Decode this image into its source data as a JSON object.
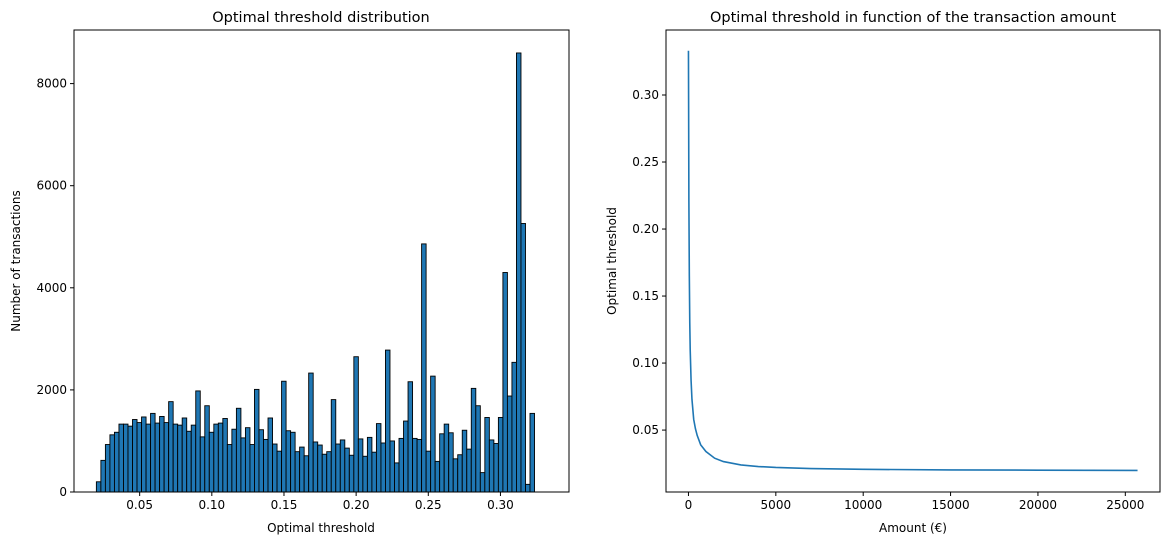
{
  "chart_data": [
    {
      "type": "bar",
      "title": "Optimal threshold distribution",
      "xlabel": "Optimal threshold",
      "ylabel": "Number of transactions",
      "xlim": [
        0.0045,
        0.3475
      ],
      "ylim": [
        0,
        9050
      ],
      "xticks": [
        0.05,
        0.1,
        0.15,
        0.2,
        0.25,
        0.3
      ],
      "xtick_labels": [
        "0.05",
        "0.10",
        "0.15",
        "0.20",
        "0.25",
        "0.30"
      ],
      "yticks": [
        0,
        2000,
        4000,
        6000,
        8000
      ],
      "ytick_labels": [
        "0",
        "2000",
        "4000",
        "6000",
        "8000"
      ],
      "bin_start": 0.02,
      "bin_width": 0.00313,
      "bar_color": "#1f77b4",
      "edge_color": "#000000",
      "values": [
        200,
        620,
        930,
        1120,
        1170,
        1330,
        1330,
        1290,
        1420,
        1360,
        1470,
        1330,
        1540,
        1350,
        1480,
        1360,
        1770,
        1330,
        1310,
        1450,
        1190,
        1310,
        1980,
        1080,
        1690,
        1170,
        1330,
        1350,
        1440,
        930,
        1230,
        1640,
        1060,
        1260,
        930,
        2010,
        1220,
        1030,
        1450,
        940,
        800,
        2170,
        1200,
        1170,
        790,
        880,
        710,
        2330,
        980,
        920,
        740,
        790,
        1810,
        940,
        1020,
        860,
        720,
        2650,
        1040,
        700,
        1070,
        780,
        1340,
        960,
        2780,
        1000,
        570,
        1050,
        1390,
        2160,
        1050,
        1030,
        4860,
        800,
        2270,
        600,
        1140,
        1330,
        1160,
        650,
        730,
        1210,
        840,
        2030,
        1690,
        380,
        1460,
        1020,
        950,
        1460,
        4300,
        1880,
        2540,
        8600,
        5260,
        150,
        1540
      ]
    },
    {
      "type": "line",
      "title": "Optimal threshold in function of the transaction amount",
      "xlabel": "Amount (€)",
      "ylabel": "Optimal threshold",
      "xlim": [
        -1285,
        26985
      ],
      "ylim": [
        0.0038,
        0.3485
      ],
      "xticks": [
        0,
        5000,
        10000,
        15000,
        20000,
        25000
      ],
      "xtick_labels": [
        "0",
        "5000",
        "10000",
        "15000",
        "20000",
        "25000"
      ],
      "yticks": [
        0.05,
        0.1,
        0.15,
        0.2,
        0.25,
        0.3
      ],
      "ytick_labels": [
        "0.05",
        "0.10",
        "0.15",
        "0.20",
        "0.25",
        "0.30"
      ],
      "line_color": "#1f77b4",
      "series": [
        {
          "x": [
            0,
            10,
            25,
            50,
            75,
            100,
            150,
            200,
            300,
            400,
            500,
            700,
            1000,
            1500,
            2000,
            3000,
            4000,
            5000,
            7000,
            10000,
            15000,
            20000,
            25700
          ],
          "y": [
            0.333,
            0.29,
            0.22,
            0.165,
            0.13,
            0.11,
            0.087,
            0.073,
            0.058,
            0.051,
            0.046,
            0.039,
            0.034,
            0.029,
            0.0265,
            0.024,
            0.0228,
            0.0221,
            0.0213,
            0.0207,
            0.0203,
            0.0201,
            0.0199
          ]
        }
      ]
    }
  ]
}
